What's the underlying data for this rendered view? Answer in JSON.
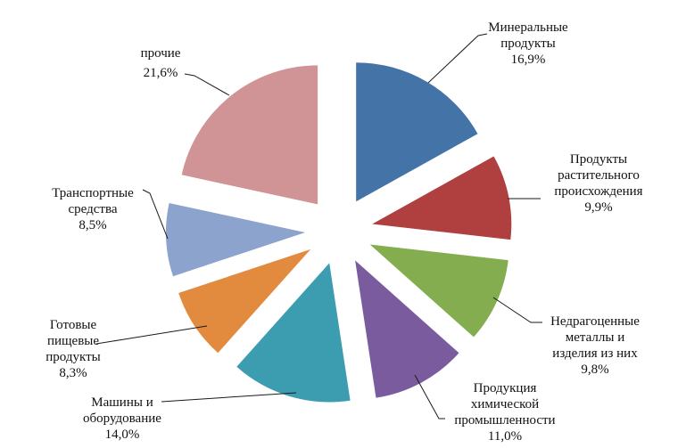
{
  "page": {
    "background_color": "#ffffff",
    "text_color": "#111111",
    "leader_line_color": "#1a1a1a"
  },
  "chart_data": {
    "type": "pie",
    "title": "",
    "exploded": true,
    "direction": "clockwise",
    "start_angle_deg": 0,
    "value_unit": "%",
    "decimal_separator": ",",
    "total": 100.0,
    "slices": [
      {
        "id": "mineral-products",
        "label": "Минеральные продукты",
        "label_lines": [
          "Минеральные",
          "продукты"
        ],
        "value": 16.9,
        "value_label": "16,9%",
        "color": "#4473A8"
      },
      {
        "id": "vegetable-products",
        "label": "Продукты растительного происхождения",
        "label_lines": [
          "Продукты",
          "растительного",
          "происхождения"
        ],
        "value": 9.9,
        "value_label": "9,9%",
        "color": "#B04040"
      },
      {
        "id": "base-metals",
        "label": "Недрагоценные металлы и изделия из них",
        "label_lines": [
          "Недрагоценные",
          "металлы и",
          "изделия из них"
        ],
        "value": 9.8,
        "value_label": "9,8%",
        "color": "#84AD4F"
      },
      {
        "id": "chemical-products",
        "label": "Продукция химической промышленности",
        "label_lines": [
          "Продукция",
          "химической",
          "промышленности"
        ],
        "value": 11.0,
        "value_label": "11,0%",
        "color": "#7A5C9E"
      },
      {
        "id": "machinery",
        "label": "Машины и оборудование",
        "label_lines": [
          "Машины и",
          "оборудование"
        ],
        "value": 14.0,
        "value_label": "14,0%",
        "color": "#3D9DB0"
      },
      {
        "id": "food-products",
        "label": "Готовые пищевые продукты",
        "label_lines": [
          "Готовые",
          "пищевые",
          "продукты"
        ],
        "value": 8.3,
        "value_label": "8,3%",
        "color": "#E28A3E"
      },
      {
        "id": "transport",
        "label": "Транспортные средства",
        "label_lines": [
          "Транспортные",
          "средства"
        ],
        "value": 8.5,
        "value_label": "8,5%",
        "color": "#8CA3CE"
      },
      {
        "id": "other",
        "label": "прочие",
        "label_lines": [
          "прочие"
        ],
        "value": 21.6,
        "value_label": "21,6%",
        "color": "#D09396"
      }
    ]
  }
}
